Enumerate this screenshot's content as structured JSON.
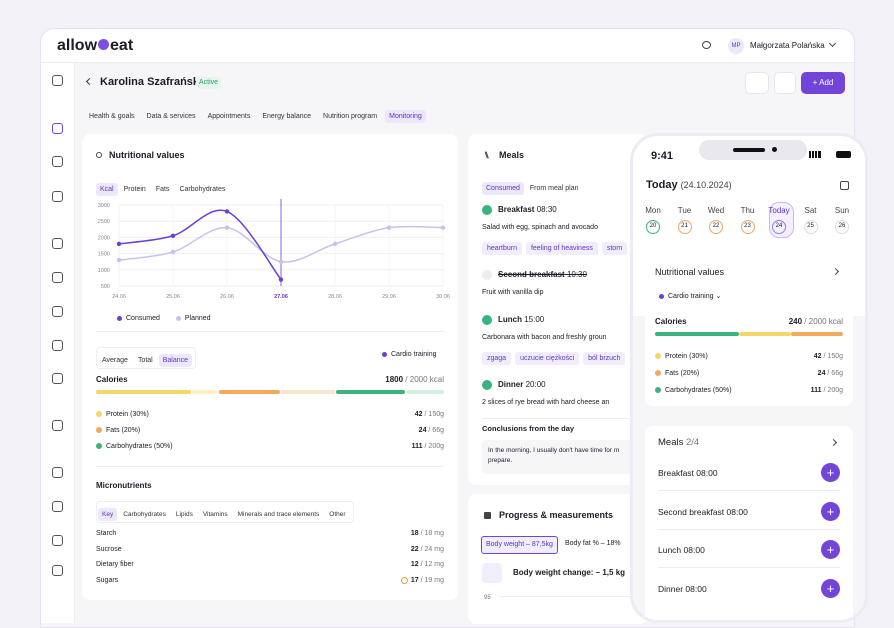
{
  "app": {
    "logo_left": "allow",
    "logo_right": "eat",
    "user_initials": "MP",
    "user_name": "Małgorzata Polańska"
  },
  "patient": {
    "name": "Karolina Szafrańska",
    "status": "Active",
    "add": "Add"
  },
  "tabs": [
    "Health & goals",
    "Data & services",
    "Appointments",
    "Energy balance",
    "Nutrition program",
    "Monitoring"
  ],
  "nutrition": {
    "title": "Nutritional values",
    "filters": [
      "Kcal",
      "Protein",
      "Fats",
      "Carbohydrates"
    ],
    "chart": {
      "type": "line",
      "categories": [
        "24.06",
        "25.06",
        "26.06",
        "27.06",
        "28.06",
        "29.06",
        "30.06"
      ],
      "series": [
        {
          "name": "Consumed",
          "color": "#6b3fd1",
          "values": [
            1800,
            2050,
            2800,
            700,
            null,
            null,
            null
          ]
        },
        {
          "name": "Planned",
          "color": "#c9c1ec",
          "values": [
            1300,
            1550,
            2300,
            1250,
            1800,
            2300,
            2300
          ]
        }
      ],
      "ylim": [
        500,
        3000
      ],
      "yticks": [
        500,
        1000,
        1500,
        2000,
        2500,
        3000
      ],
      "grid": true
    },
    "views": [
      "Average",
      "Total",
      "Balance"
    ],
    "training": "Cardio training",
    "calories": {
      "label": "Calories",
      "value": 1800,
      "target": "/ 2000 kcal"
    },
    "macros": [
      {
        "name": "Protein (30%)",
        "value": 42,
        "target": "/ 150g",
        "color": "#f6d66b"
      },
      {
        "name": "Fats (20%)",
        "value": 24,
        "target": "/ 66g",
        "color": "#f3a85f"
      },
      {
        "name": "Carbohydrates (50%)",
        "value": 111,
        "target": "/ 200g",
        "color": "#3bb27f"
      }
    ],
    "micro_title": "Micronutrients",
    "micro_tabs": [
      "Key",
      "Carbohydrates",
      "Lipids",
      "Vitamins",
      "Minerals and trace elements",
      "Other"
    ],
    "micros": [
      {
        "name": "Starch",
        "value": 18,
        "target": "/ 18 mg"
      },
      {
        "name": "Sucrose",
        "value": 22,
        "target": "/ 24 mg"
      },
      {
        "name": "Dietary fiber",
        "value": 12,
        "target": "/ 12 mg"
      },
      {
        "name": "Sugars",
        "value": 17,
        "target": "/ 19 mg"
      }
    ]
  },
  "meals": {
    "title": "Meals",
    "tabs": [
      "Consumed",
      "From meal plan"
    ],
    "items": [
      {
        "name": "Breakfast",
        "time": "08:30",
        "desc": "Salad with egg, spinach and avocado",
        "tags": [
          "heartburn",
          "feeling of heaviness",
          "stom"
        ]
      },
      {
        "name": "Second breakfast",
        "time": "10:30",
        "desc": "Fruit with vanilla dip",
        "tags": []
      },
      {
        "name": "Lunch",
        "time": "15:00",
        "desc": "Carbonara with bacon and freshly groun",
        "tags": [
          "zgaga",
          "uczucie ciężkości",
          "ból brzuch"
        ]
      },
      {
        "name": "Dinner",
        "time": "20:00",
        "desc": "2 slices of rye bread with hard cheese an",
        "tags": []
      }
    ],
    "conclusions_title": "Conclusions from the day",
    "conclusions": [
      "In the morning, I usually don't have time for m",
      "prepare."
    ]
  },
  "progress": {
    "title": "Progress & measurements",
    "tabs": [
      "Body weight – 87,5kg",
      "Body fat % – 18%"
    ],
    "change": "Body weight change: – 1,5 kg",
    "axis_label": "95"
  },
  "phone": {
    "time": "9:41",
    "today": "Today",
    "date": "(24.10.2024)",
    "days": [
      {
        "name": "Mon",
        "num": 20
      },
      {
        "name": "Tue",
        "num": 21
      },
      {
        "name": "Wed",
        "num": 22
      },
      {
        "name": "Thu",
        "num": 23
      },
      {
        "name": "Today",
        "num": 24
      },
      {
        "name": "Sat",
        "num": 25
      },
      {
        "name": "Sun",
        "num": 26
      }
    ],
    "nutrition_title": "Nutritional values",
    "training": "Cardio training",
    "calories_label": "Calories",
    "calories_value": 240,
    "calories_target": "/ 2000 kcal",
    "macros": [
      {
        "name": "Protein (30%)",
        "value": 42,
        "target": "/ 150g"
      },
      {
        "name": "Fats (20%)",
        "value": 24,
        "target": "/ 66g"
      },
      {
        "name": "Carbohydrates (50%)",
        "value": 111,
        "target": "/ 200g"
      }
    ],
    "meals_title": "Meals",
    "meals_count": "2/4",
    "meals": [
      {
        "name": "Breakfast",
        "time": "08:00"
      },
      {
        "name": "Second breakfast",
        "time": "08:00"
      },
      {
        "name": "Lunch",
        "time": "08:00"
      },
      {
        "name": "Dinner",
        "time": "08:00"
      }
    ]
  }
}
